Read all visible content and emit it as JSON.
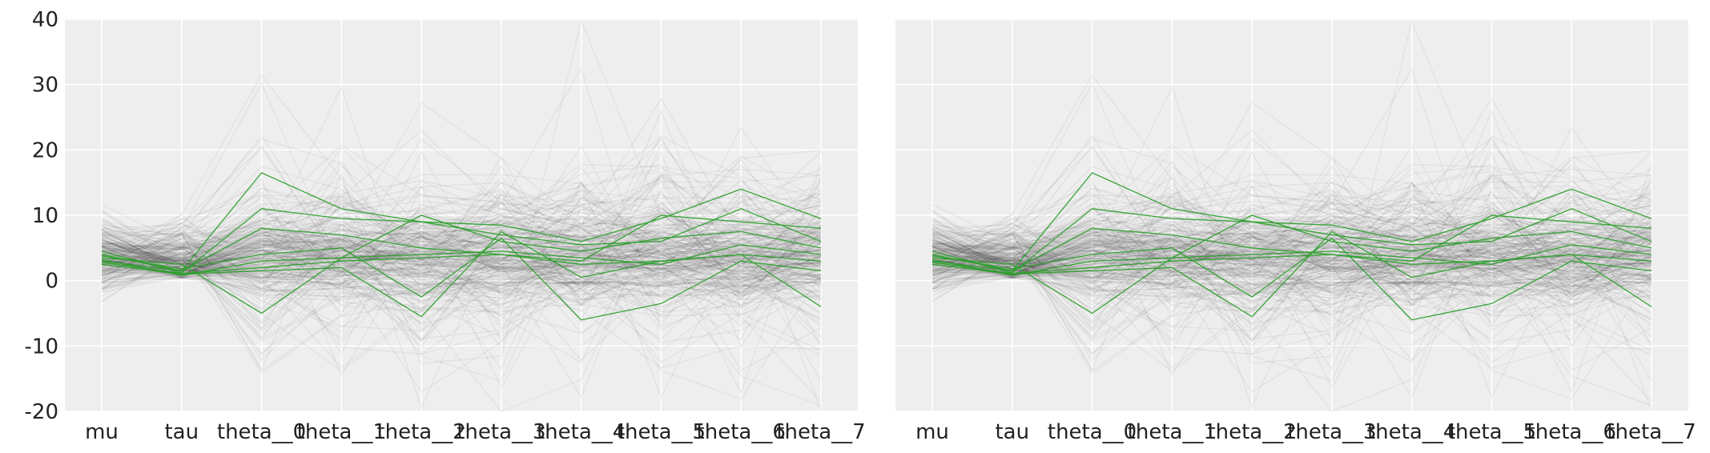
{
  "figure": {
    "background": "#ffffff",
    "panel_background": "#eeeeee",
    "grid_color": "#ffffff",
    "background_line_color": "#000000",
    "highlight_line_color": "#2ca02c"
  },
  "chart_data": [
    {
      "type": "line",
      "title": "",
      "xlabel": "",
      "ylabel": "",
      "categories": [
        "mu",
        "tau",
        "theta__0",
        "theta__1",
        "theta__2",
        "theta__3",
        "theta__4",
        "theta__5",
        "theta__6",
        "theta__7"
      ],
      "ylim": [
        -20,
        40
      ],
      "yticks": [
        -20,
        -10,
        0,
        10,
        20,
        30,
        40
      ],
      "grid": true,
      "legend": "none",
      "highlighted_series": [
        {
          "values": [
            3.0,
            1.5,
            16.5,
            11.0,
            9.0,
            8.5,
            6.0,
            9.5,
            14.0,
            9.5
          ]
        },
        {
          "values": [
            4.5,
            1.2,
            11.0,
            9.5,
            9.0,
            7.0,
            5.5,
            6.0,
            11.0,
            6.0
          ]
        },
        {
          "values": [
            3.5,
            2.5,
            -5.0,
            3.5,
            10.0,
            6.0,
            4.5,
            6.5,
            7.5,
            5.0
          ]
        },
        {
          "values": [
            2.5,
            1.0,
            1.5,
            2.0,
            -5.5,
            7.5,
            0.5,
            3.0,
            4.0,
            -4.0
          ]
        },
        {
          "values": [
            3.8,
            1.8,
            4.0,
            5.0,
            -2.5,
            6.5,
            -6.0,
            -3.5,
            3.0,
            1.5
          ]
        },
        {
          "values": [
            4.0,
            1.5,
            8.0,
            7.0,
            5.0,
            4.0,
            3.0,
            10.0,
            9.0,
            8.0
          ]
        },
        {
          "values": [
            3.2,
            0.8,
            3.0,
            3.5,
            4.0,
            4.5,
            3.5,
            2.5,
            5.5,
            4.0
          ]
        },
        {
          "values": [
            2.8,
            1.1,
            2.0,
            3.0,
            3.5,
            4.0,
            2.5,
            3.0,
            4.0,
            3.0
          ]
        }
      ]
    },
    {
      "type": "line",
      "title": "",
      "xlabel": "",
      "ylabel": "",
      "categories": [
        "mu",
        "tau",
        "theta__0",
        "theta__1",
        "theta__2",
        "theta__3",
        "theta__4",
        "theta__5",
        "theta__6",
        "theta__7"
      ],
      "ylim": [
        -20,
        40
      ],
      "yticks": [
        -20,
        -10,
        0,
        10,
        20,
        30,
        40
      ],
      "grid": true,
      "legend": "none",
      "highlighted_series": [
        {
          "values": [
            3.0,
            1.5,
            16.5,
            11.0,
            9.0,
            8.5,
            6.0,
            9.5,
            14.0,
            9.5
          ]
        },
        {
          "values": [
            4.5,
            1.2,
            11.0,
            9.5,
            9.0,
            7.0,
            5.5,
            6.0,
            11.0,
            6.0
          ]
        },
        {
          "values": [
            3.5,
            2.5,
            -5.0,
            3.5,
            10.0,
            6.0,
            4.5,
            6.5,
            7.5,
            5.0
          ]
        },
        {
          "values": [
            2.5,
            1.0,
            1.5,
            2.0,
            -5.5,
            7.5,
            0.5,
            3.0,
            4.0,
            -4.0
          ]
        },
        {
          "values": [
            3.8,
            1.8,
            4.0,
            5.0,
            -2.5,
            6.5,
            -6.0,
            -3.5,
            3.0,
            1.5
          ]
        },
        {
          "values": [
            4.0,
            1.5,
            8.0,
            7.0,
            5.0,
            4.0,
            3.0,
            10.0,
            9.0,
            8.0
          ]
        },
        {
          "values": [
            3.2,
            0.8,
            3.0,
            3.5,
            4.0,
            4.5,
            3.5,
            2.5,
            5.5,
            4.0
          ]
        },
        {
          "values": [
            2.8,
            1.1,
            2.0,
            3.0,
            3.5,
            4.0,
            2.5,
            3.0,
            4.0,
            3.0
          ]
        }
      ]
    }
  ]
}
